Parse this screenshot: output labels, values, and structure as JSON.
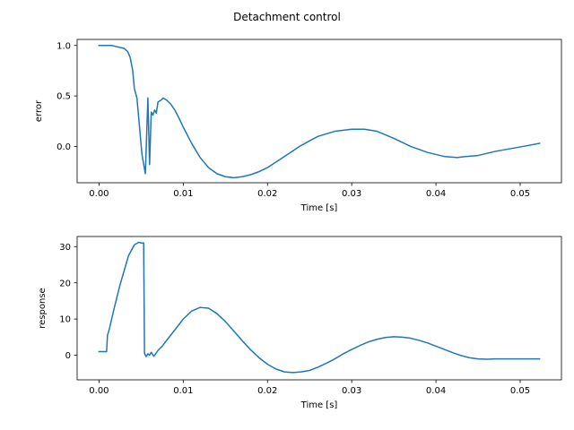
{
  "figure": {
    "title": "Detachment control"
  },
  "chart_data": [
    {
      "type": "line",
      "xlabel": "Time [s]",
      "ylabel": "error",
      "xlim": [
        -0.0026,
        0.0549
      ],
      "ylim": [
        -0.36,
        1.06
      ],
      "xticks": [
        0.0,
        0.01,
        0.02,
        0.03,
        0.04,
        0.05
      ],
      "xtick_labels": [
        "0.00",
        "0.01",
        "0.02",
        "0.03",
        "0.04",
        "0.05"
      ],
      "yticks": [
        0.0,
        0.5,
        1.0
      ],
      "ytick_labels": [
        "0.0",
        "0.5",
        "1.0"
      ],
      "grid": false,
      "series": [
        {
          "color": "#1f77b4",
          "x": [
            0.0,
            0.0015,
            0.0025,
            0.003,
            0.0034,
            0.0037,
            0.004,
            0.0042,
            0.0045,
            0.0048,
            0.0051,
            0.0055,
            0.0058,
            0.006,
            0.0062,
            0.0064,
            0.0066,
            0.0068,
            0.007,
            0.0072,
            0.0074,
            0.0076,
            0.0078,
            0.008,
            0.0085,
            0.009,
            0.0095,
            0.01,
            0.011,
            0.012,
            0.013,
            0.014,
            0.015,
            0.016,
            0.017,
            0.018,
            0.019,
            0.02,
            0.022,
            0.024,
            0.026,
            0.028,
            0.03,
            0.0315,
            0.033,
            0.035,
            0.037,
            0.039,
            0.041,
            0.0425,
            0.0435,
            0.045,
            0.047,
            0.049,
            0.051,
            0.0523
          ],
          "y": [
            1.0,
            1.0,
            0.98,
            0.97,
            0.94,
            0.88,
            0.75,
            0.57,
            0.48,
            0.2,
            -0.08,
            -0.27,
            0.48,
            -0.18,
            0.34,
            0.31,
            0.36,
            0.33,
            0.44,
            0.45,
            0.46,
            0.48,
            0.47,
            0.46,
            0.42,
            0.36,
            0.28,
            0.19,
            0.03,
            -0.11,
            -0.21,
            -0.27,
            -0.3,
            -0.31,
            -0.3,
            -0.28,
            -0.25,
            -0.21,
            -0.1,
            0.01,
            0.1,
            0.15,
            0.17,
            0.17,
            0.15,
            0.08,
            0.0,
            -0.06,
            -0.1,
            -0.11,
            -0.1,
            -0.09,
            -0.05,
            -0.02,
            0.01,
            0.03
          ]
        }
      ]
    },
    {
      "type": "line",
      "xlabel": "Time [s]",
      "ylabel": "response",
      "xlim": [
        -0.0026,
        0.0549
      ],
      "ylim": [
        -6.8,
        32.8
      ],
      "xticks": [
        0.0,
        0.01,
        0.02,
        0.03,
        0.04,
        0.05
      ],
      "xtick_labels": [
        "0.00",
        "0.01",
        "0.02",
        "0.03",
        "0.04",
        "0.05"
      ],
      "yticks": [
        0,
        10,
        20,
        30
      ],
      "ytick_labels": [
        "0",
        "10",
        "20",
        "30"
      ],
      "grid": false,
      "series": [
        {
          "color": "#1f77b4",
          "x": [
            0.0,
            0.0009,
            0.001,
            0.0012,
            0.0018,
            0.0025,
            0.0035,
            0.0042,
            0.0047,
            0.005,
            0.0053,
            0.0054,
            0.0056,
            0.0058,
            0.006,
            0.0062,
            0.0065,
            0.007,
            0.0075,
            0.008,
            0.009,
            0.01,
            0.011,
            0.012,
            0.013,
            0.014,
            0.015,
            0.016,
            0.017,
            0.018,
            0.019,
            0.02,
            0.021,
            0.022,
            0.023,
            0.024,
            0.025,
            0.026,
            0.027,
            0.028,
            0.029,
            0.03,
            0.031,
            0.032,
            0.033,
            0.034,
            0.035,
            0.036,
            0.037,
            0.038,
            0.039,
            0.04,
            0.041,
            0.042,
            0.043,
            0.044,
            0.045,
            0.046,
            0.047,
            0.048,
            0.049,
            0.05,
            0.051,
            0.0523
          ],
          "y": [
            1.0,
            1.0,
            5.5,
            7.0,
            13.0,
            19.5,
            27.5,
            30.5,
            31.2,
            31.0,
            31.0,
            0.5,
            -0.4,
            0.4,
            0.0,
            0.8,
            -0.3,
            1.3,
            2.5,
            4.0,
            7.0,
            10.0,
            12.2,
            13.2,
            13.0,
            11.5,
            9.3,
            6.7,
            4.0,
            1.5,
            -0.7,
            -2.5,
            -3.8,
            -4.6,
            -4.8,
            -4.6,
            -4.2,
            -3.3,
            -2.2,
            -1.0,
            0.4,
            1.6,
            2.7,
            3.7,
            4.4,
            4.9,
            5.1,
            5.0,
            4.7,
            4.1,
            3.4,
            2.5,
            1.6,
            0.7,
            -0.1,
            -0.7,
            -1.0,
            -1.1,
            -1.0,
            -1.0,
            -1.0,
            -1.0,
            -1.0,
            -1.0
          ]
        }
      ]
    }
  ]
}
